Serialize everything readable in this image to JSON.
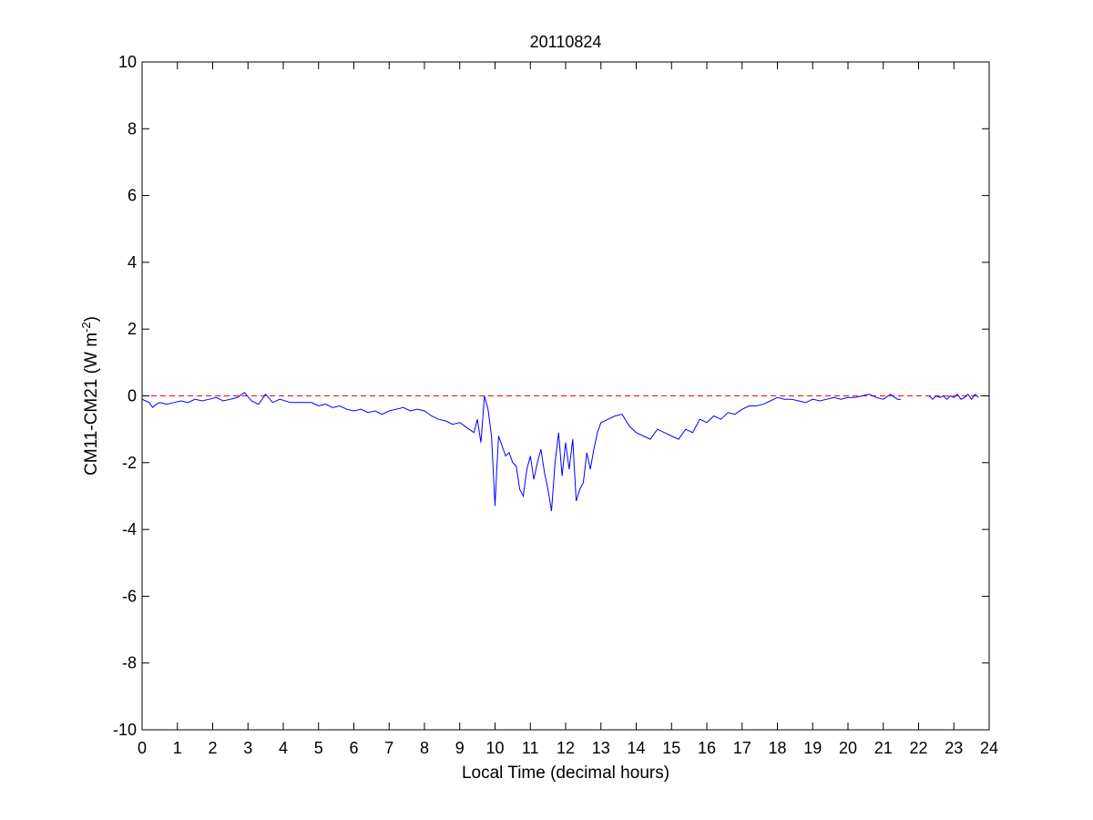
{
  "chart_data": {
    "type": "line",
    "title": "20110824",
    "xlabel": "Local Time (decimal hours)",
    "ylabel": "CM11-CM21 (W m^-2)",
    "ylabel_main": "CM11-CM21 (W m",
    "ylabel_sup": "-2",
    "ylabel_close": ")",
    "xlim": [
      0,
      24
    ],
    "ylim": [
      -10,
      10
    ],
    "xticks": [
      0,
      1,
      2,
      3,
      4,
      5,
      6,
      7,
      8,
      9,
      10,
      11,
      12,
      13,
      14,
      15,
      16,
      17,
      18,
      19,
      20,
      21,
      22,
      23,
      24
    ],
    "yticks": [
      -10,
      -8,
      -6,
      -4,
      -2,
      0,
      2,
      4,
      6,
      8,
      10
    ],
    "grid": false,
    "reference_line": {
      "y": 0,
      "style": "dashed",
      "color": "#ff0000"
    },
    "series": [
      {
        "color": "#0000ff",
        "x": [
          0.0,
          0.1,
          0.2,
          0.3,
          0.4,
          0.5,
          0.7,
          0.9,
          1.1,
          1.3,
          1.5,
          1.7,
          1.9,
          2.1,
          2.3,
          2.5,
          2.7,
          2.9,
          3.1,
          3.3,
          3.5,
          3.7,
          3.9,
          4.2,
          4.5,
          4.8,
          5.0,
          5.2,
          5.4,
          5.6,
          5.8,
          6.0,
          6.2,
          6.4,
          6.6,
          6.8,
          7.0,
          7.2,
          7.4,
          7.6,
          7.8,
          8.0,
          8.2,
          8.4,
          8.6,
          8.8,
          9.0,
          9.2,
          9.4,
          9.5,
          9.6,
          9.7,
          9.8,
          9.9,
          10.0,
          10.05,
          10.1,
          10.2,
          10.3,
          10.4,
          10.5,
          10.6,
          10.7,
          10.8,
          10.9,
          11.0,
          11.1,
          11.2,
          11.3,
          11.4,
          11.5,
          11.6,
          11.7,
          11.8,
          11.9,
          12.0,
          12.1,
          12.2,
          12.3,
          12.4,
          12.5,
          12.6,
          12.7,
          12.8,
          12.9,
          13.0,
          13.2,
          13.4,
          13.6,
          13.8,
          14.0,
          14.2,
          14.4,
          14.6,
          14.8,
          15.0,
          15.2,
          15.4,
          15.6,
          15.8,
          16.0,
          16.2,
          16.4,
          16.6,
          16.8,
          17.0,
          17.2,
          17.4,
          17.6,
          17.8,
          18.0,
          18.2,
          18.4,
          18.6,
          18.8,
          19.0,
          19.2,
          19.4,
          19.6,
          19.8,
          20.0,
          20.2,
          20.4,
          20.6,
          20.8,
          21.0,
          21.2,
          21.4,
          21.5
        ],
        "y": [
          -0.1,
          -0.15,
          -0.2,
          -0.35,
          -0.25,
          -0.2,
          -0.25,
          -0.2,
          -0.15,
          -0.2,
          -0.1,
          -0.15,
          -0.1,
          -0.05,
          -0.15,
          -0.1,
          -0.05,
          0.1,
          -0.15,
          -0.25,
          0.05,
          -0.2,
          -0.1,
          -0.2,
          -0.2,
          -0.2,
          -0.3,
          -0.25,
          -0.35,
          -0.3,
          -0.4,
          -0.45,
          -0.4,
          -0.5,
          -0.45,
          -0.55,
          -0.45,
          -0.4,
          -0.35,
          -0.45,
          -0.4,
          -0.45,
          -0.6,
          -0.7,
          -0.75,
          -0.85,
          -0.8,
          -0.95,
          -1.1,
          -0.7,
          -1.4,
          0.0,
          -0.4,
          -1.2,
          -3.3,
          -2.2,
          -1.2,
          -1.5,
          -1.8,
          -1.7,
          -2.0,
          -2.1,
          -2.8,
          -3.0,
          -2.2,
          -1.8,
          -2.5,
          -2.0,
          -1.6,
          -2.3,
          -2.8,
          -3.45,
          -2.0,
          -1.1,
          -2.4,
          -1.4,
          -2.2,
          -1.3,
          -3.15,
          -2.8,
          -2.6,
          -1.7,
          -2.2,
          -1.6,
          -1.1,
          -0.8,
          -0.7,
          -0.6,
          -0.55,
          -0.9,
          -1.1,
          -1.2,
          -1.3,
          -1.0,
          -1.1,
          -1.2,
          -1.3,
          -1.0,
          -1.1,
          -0.7,
          -0.8,
          -0.6,
          -0.7,
          -0.5,
          -0.55,
          -0.4,
          -0.3,
          -0.3,
          -0.25,
          -0.15,
          -0.05,
          -0.1,
          -0.1,
          -0.15,
          -0.2,
          -0.1,
          -0.15,
          -0.1,
          -0.05,
          -0.1,
          -0.05,
          -0.05,
          0.0,
          0.05,
          -0.05,
          -0.1,
          0.05,
          -0.1,
          -0.1
        ]
      },
      {
        "color": "#0000ff",
        "x": [
          22.3,
          22.4,
          22.5,
          22.6,
          22.7,
          22.8,
          22.9,
          23.0,
          23.1,
          23.2,
          23.3,
          23.4,
          23.5,
          23.6,
          23.7
        ],
        "y": [
          0.0,
          -0.1,
          0.0,
          -0.05,
          0.0,
          -0.1,
          0.0,
          -0.05,
          0.05,
          -0.1,
          -0.05,
          0.05,
          -0.1,
          0.05,
          -0.05
        ]
      }
    ]
  }
}
